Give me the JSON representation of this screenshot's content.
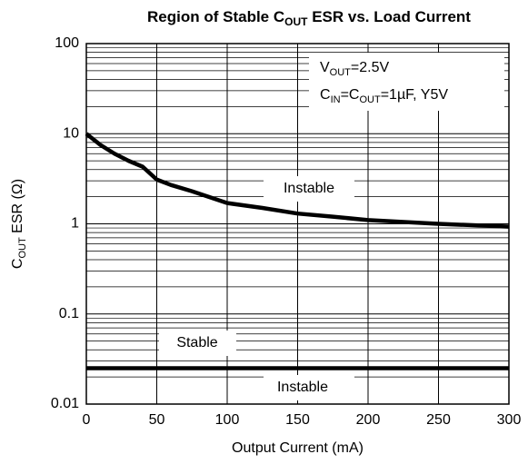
{
  "chart_data": {
    "type": "line",
    "title": [
      "Region of Stable C",
      "OUT",
      " ESR vs. Load Current"
    ],
    "x_label": "Output Current (mA)",
    "y_label": [
      "C",
      "OUT",
      " ESR (Ω)"
    ],
    "xlim": [
      0,
      300
    ],
    "xticks": [
      0,
      50,
      100,
      150,
      200,
      250,
      300
    ],
    "ylim": [
      0.01,
      100
    ],
    "yticks": [
      0.01,
      0.1,
      1,
      10,
      100
    ],
    "log_y": true,
    "grid": true,
    "minor_grid": true,
    "series": [
      {
        "color": "#000000",
        "x": [
          0,
          10,
          20,
          30,
          40,
          50,
          60,
          75,
          100,
          125,
          150,
          175,
          200,
          250,
          300
        ],
        "values": [
          10,
          7.5,
          6,
          5,
          4.3,
          3.1,
          2.7,
          2.3,
          1.7,
          1.5,
          1.3,
          1.2,
          1.1,
          1.0,
          0.93
        ]
      },
      {
        "color": "#000000",
        "x": [
          0,
          300
        ],
        "values": [
          0.025,
          0.025
        ]
      }
    ],
    "annotations": [
      [
        "V",
        "OUT",
        "=2.5V"
      ],
      [
        "C",
        "IN",
        "=C",
        "OUT",
        "=1µF, Y5V"
      ],
      [
        "Instable"
      ],
      [
        "Stable"
      ],
      [
        "Instable"
      ]
    ]
  }
}
